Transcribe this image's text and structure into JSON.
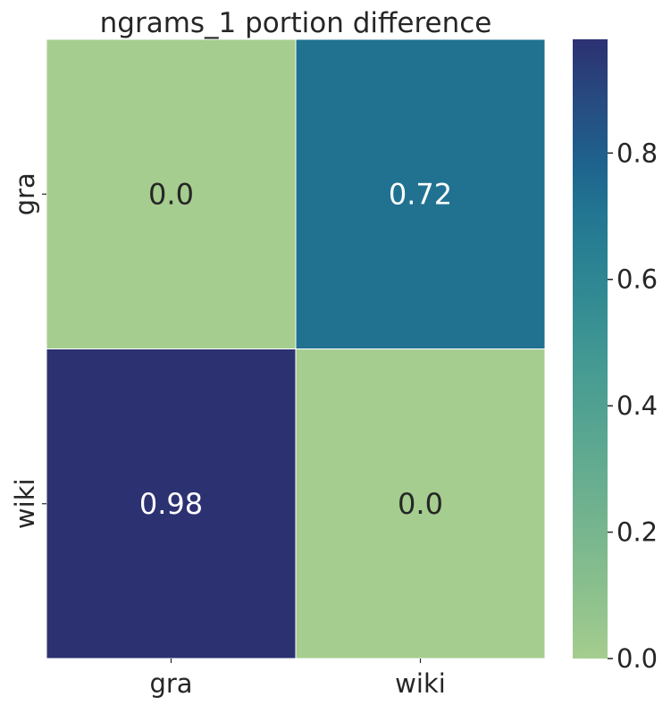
{
  "chart_data": {
    "type": "heatmap",
    "title": "ngrams_1 portion difference",
    "xlabel": "",
    "ylabel": "",
    "x_categories": [
      "gra",
      "wiki"
    ],
    "y_categories": [
      "gra",
      "wiki"
    ],
    "values": [
      [
        0.0,
        0.72
      ],
      [
        0.98,
        0.0
      ]
    ],
    "cell_labels": [
      [
        "0.0",
        "0.72"
      ],
      [
        "0.98",
        "0.0"
      ]
    ],
    "colormap": "crest",
    "color_range": [
      0.0,
      0.98
    ],
    "colorbar": {
      "ticks": [
        0.0,
        0.2,
        0.4,
        0.6,
        0.8
      ],
      "tick_labels": [
        "0.0",
        "0.2",
        "0.4",
        "0.6",
        "0.8"
      ]
    },
    "colors": {
      "low": "#a5cd8f",
      "high": "#2c3172",
      "label_light": "#ffffff",
      "label_dark": "#262626"
    }
  }
}
